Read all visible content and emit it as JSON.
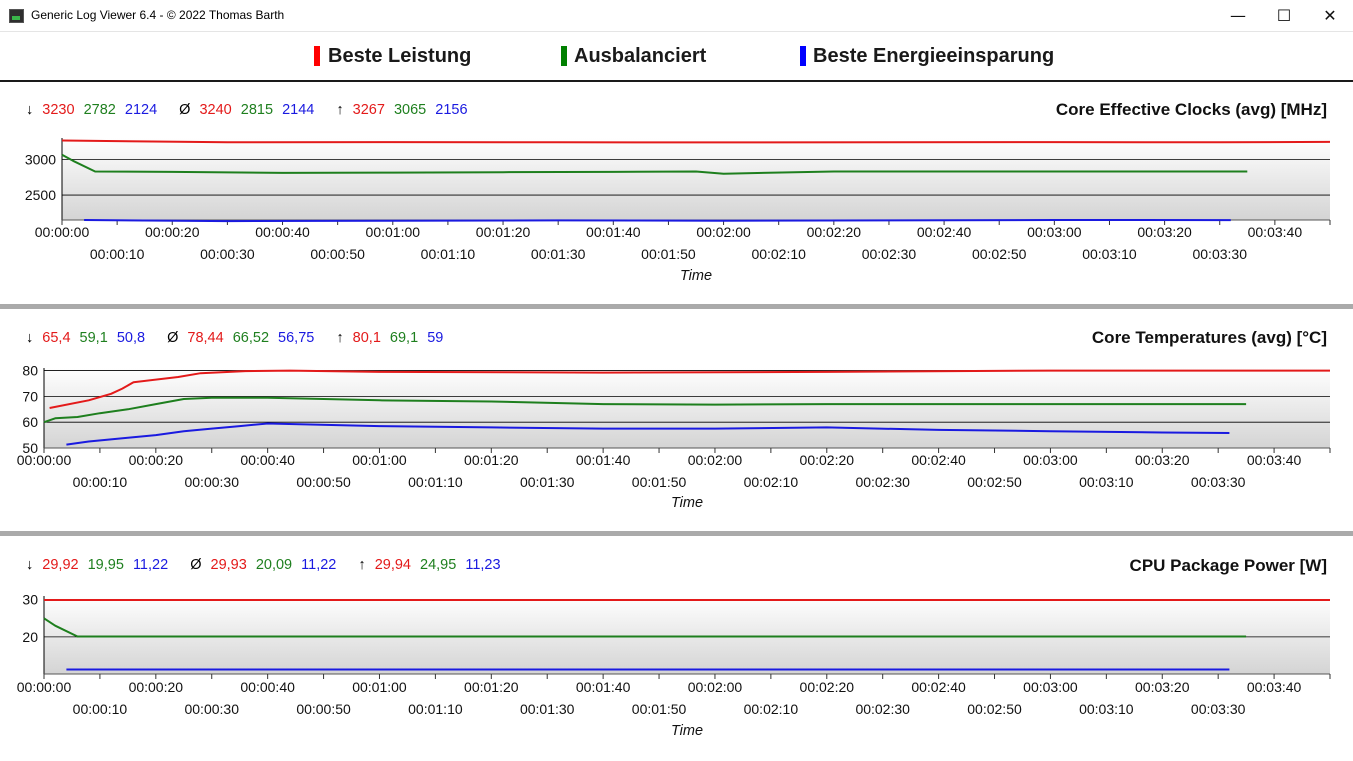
{
  "window": {
    "title": "Generic Log Viewer 6.4 - © 2022 Thomas Barth",
    "minimize_glyph": "—",
    "maximize_glyph": "☐",
    "close_glyph": "✕"
  },
  "legend": [
    {
      "label": "Beste Leistung",
      "color": "#ff0000"
    },
    {
      "label": "Ausbalanciert",
      "color": "#008000"
    },
    {
      "label": "Beste Energieeinsparung",
      "color": "#0000ff"
    }
  ],
  "colors": {
    "red": "#e31a1a",
    "green": "#1e7f1e",
    "blue": "#1a1ae0",
    "plot_bg_top": "#ffffff",
    "plot_bg_bottom": "#d4d4d4"
  },
  "panels": [
    {
      "title": "Core Effective Clocks (avg) [MHz]",
      "stats": {
        "min_symbol": "↓",
        "avg_symbol": "Ø",
        "max_symbol": "↑",
        "min": [
          "3230",
          "2782",
          "2124"
        ],
        "avg": [
          "3240",
          "2815",
          "2144"
        ],
        "max": [
          "3267",
          "3065",
          "2156"
        ]
      },
      "xlabel": "Time"
    },
    {
      "title": "Core Temperatures (avg) [°C]",
      "stats": {
        "min_symbol": "↓",
        "avg_symbol": "Ø",
        "max_symbol": "↑",
        "min": [
          "65,4",
          "59,1",
          "50,8"
        ],
        "avg": [
          "78,44",
          "66,52",
          "56,75"
        ],
        "max": [
          "80,1",
          "69,1",
          "59"
        ]
      },
      "xlabel": "Time"
    },
    {
      "title": "CPU Package Power [W]",
      "stats": {
        "min_symbol": "↓",
        "avg_symbol": "Ø",
        "max_symbol": "↑",
        "min": [
          "29,92",
          "19,95",
          "11,22"
        ],
        "avg": [
          "29,93",
          "20,09",
          "11,22"
        ],
        "max": [
          "29,94",
          "24,95",
          "11,23"
        ]
      },
      "xlabel": "Time"
    }
  ],
  "chart_data": [
    {
      "type": "line",
      "title": "Core Effective Clocks (avg) [MHz]",
      "xlabel": "Time",
      "ylabel": "",
      "xlim": [
        0,
        230
      ],
      "ylim": [
        2150,
        3300
      ],
      "yticks": [
        2500,
        3000
      ],
      "xticks_top": [
        "00:00:00",
        "00:00:20",
        "00:00:40",
        "00:01:00",
        "00:01:20",
        "00:01:40",
        "00:02:00",
        "00:02:20",
        "00:02:40",
        "00:03:00",
        "00:03:20",
        "00:03:40"
      ],
      "xticks_bottom": [
        "00:00:10",
        "00:00:30",
        "00:00:50",
        "00:01:10",
        "00:01:30",
        "00:01:50",
        "00:02:10",
        "00:02:30",
        "00:02:50",
        "00:03:10",
        "00:03:30"
      ],
      "grid": true,
      "series": [
        {
          "name": "Beste Leistung",
          "color": "#e31a1a",
          "x": [
            0,
            30,
            60,
            90,
            120,
            150,
            180,
            210,
            230
          ],
          "y": [
            3265,
            3240,
            3242,
            3240,
            3238,
            3241,
            3243,
            3240,
            3245
          ]
        },
        {
          "name": "Ausbalanciert",
          "color": "#1e7f1e",
          "x": [
            0,
            2,
            6,
            20,
            40,
            60,
            80,
            100,
            115,
            120,
            140,
            170,
            200,
            215
          ],
          "y": [
            3065,
            2980,
            2830,
            2825,
            2810,
            2815,
            2820,
            2825,
            2830,
            2800,
            2830,
            2830,
            2830,
            2830
          ]
        },
        {
          "name": "Beste Energieeinsparung",
          "color": "#1a1ae0",
          "x": [
            4,
            30,
            60,
            90,
            120,
            150,
            180,
            212
          ],
          "y": [
            2150,
            2135,
            2140,
            2145,
            2140,
            2145,
            2150,
            2148
          ]
        }
      ]
    },
    {
      "type": "line",
      "title": "Core Temperatures (avg) [°C]",
      "xlabel": "Time",
      "ylabel": "",
      "xlim": [
        0,
        230
      ],
      "ylim": [
        50,
        81
      ],
      "yticks": [
        50,
        60,
        70,
        80
      ],
      "xticks_top": [
        "00:00:00",
        "00:00:20",
        "00:00:40",
        "00:01:00",
        "00:01:20",
        "00:01:40",
        "00:02:00",
        "00:02:20",
        "00:02:40",
        "00:03:00",
        "00:03:20",
        "00:03:40"
      ],
      "xticks_bottom": [
        "00:00:10",
        "00:00:30",
        "00:00:50",
        "00:01:10",
        "00:01:30",
        "00:01:50",
        "00:02:10",
        "00:02:30",
        "00:02:50",
        "00:03:10",
        "00:03:30"
      ],
      "grid": true,
      "series": [
        {
          "name": "Beste Leistung",
          "color": "#e31a1a",
          "x": [
            1,
            8,
            12,
            14,
            16,
            24,
            28,
            36,
            44,
            60,
            100,
            140,
            180,
            200,
            230
          ],
          "y": [
            65.5,
            68.5,
            71,
            73,
            75.5,
            77.5,
            79,
            79.8,
            80,
            79.5,
            79.2,
            79.5,
            80,
            80,
            80
          ]
        },
        {
          "name": "Ausbalanciert",
          "color": "#1e7f1e",
          "x": [
            0,
            2,
            6,
            10,
            15,
            20,
            25,
            30,
            35,
            40,
            50,
            60,
            80,
            100,
            120,
            140,
            160,
            180,
            200,
            215
          ],
          "y": [
            60,
            61.5,
            62,
            63.5,
            65,
            67,
            69,
            69.5,
            69.5,
            69.5,
            69,
            68.5,
            68,
            67,
            66.8,
            67,
            67,
            67,
            67,
            67
          ]
        },
        {
          "name": "Beste Energieeinsparung",
          "color": "#1a1ae0",
          "x": [
            4,
            8,
            15,
            20,
            25,
            30,
            35,
            40,
            60,
            80,
            100,
            120,
            140,
            160,
            180,
            200,
            212
          ],
          "y": [
            51.3,
            52.5,
            54,
            55,
            56.5,
            57.5,
            58.5,
            59.5,
            58.5,
            58,
            57.5,
            57.5,
            58,
            57,
            56.5,
            56,
            55.8
          ]
        }
      ]
    },
    {
      "type": "line",
      "title": "CPU Package Power [W]",
      "xlabel": "Time",
      "ylabel": "",
      "xlim": [
        0,
        230
      ],
      "ylim": [
        10,
        31
      ],
      "yticks": [
        20,
        30
      ],
      "xticks_top": [
        "00:00:00",
        "00:00:20",
        "00:00:40",
        "00:01:00",
        "00:01:20",
        "00:01:40",
        "00:02:00",
        "00:02:20",
        "00:02:40",
        "00:03:00",
        "00:03:20",
        "00:03:40"
      ],
      "xticks_bottom": [
        "00:00:10",
        "00:00:30",
        "00:00:50",
        "00:01:10",
        "00:01:30",
        "00:01:50",
        "00:02:10",
        "00:02:30",
        "00:02:50",
        "00:03:10",
        "00:03:30"
      ],
      "grid": true,
      "series": [
        {
          "name": "Beste Leistung",
          "color": "#e31a1a",
          "x": [
            0,
            230
          ],
          "y": [
            29.93,
            29.93
          ]
        },
        {
          "name": "Ausbalanciert",
          "color": "#1e7f1e",
          "x": [
            0,
            2,
            6,
            20,
            100,
            215
          ],
          "y": [
            25,
            23,
            20.1,
            20.1,
            20.1,
            20.1
          ]
        },
        {
          "name": "Beste Energieeinsparung",
          "color": "#1a1ae0",
          "x": [
            4,
            212
          ],
          "y": [
            11.22,
            11.22
          ]
        }
      ]
    }
  ]
}
